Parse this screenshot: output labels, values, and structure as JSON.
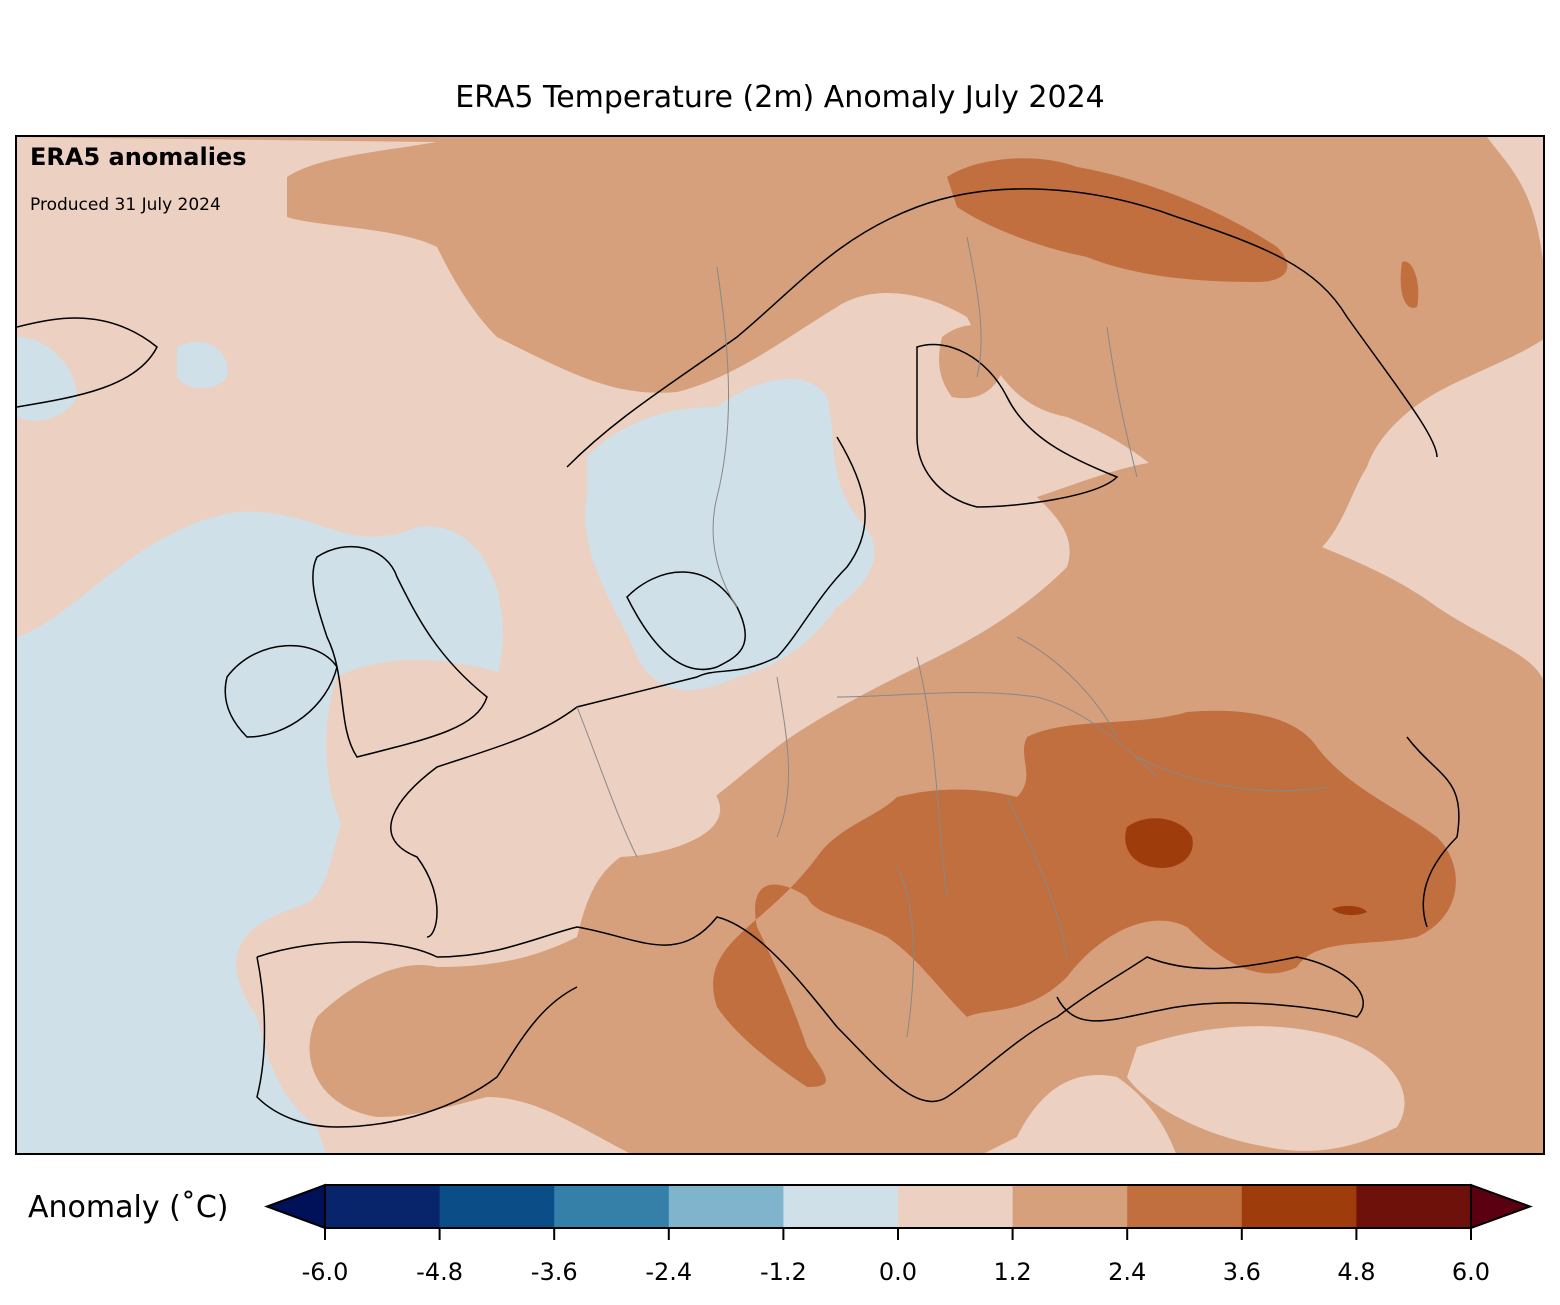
{
  "title": "ERA5 Temperature (2m) Anomaly July 2024",
  "map": {
    "annotation_title": "ERA5 anomalies",
    "annotation_subtitle": "Produced 31 July 2024",
    "region": "Europe"
  },
  "colorbar": {
    "label": "Anomaly (˚C)",
    "ticks": [
      "-6.0",
      "-4.8",
      "-3.6",
      "-2.4",
      "-1.2",
      "0.0",
      "1.2",
      "2.4",
      "3.6",
      "4.8",
      "6.0"
    ],
    "levels": [
      -6.0,
      -4.8,
      -3.6,
      -2.4,
      -1.2,
      0.0,
      1.2,
      2.4,
      3.6,
      4.8,
      6.0
    ],
    "colors": [
      "#08246b",
      "#0b4d87",
      "#3580a8",
      "#80b3cc",
      "#cfe0e8",
      "#ecd0c2",
      "#d6a07d",
      "#c26f40",
      "#9f3c0c",
      "#6e110b"
    ],
    "under_color": "#001159",
    "over_color": "#5a0010"
  }
}
